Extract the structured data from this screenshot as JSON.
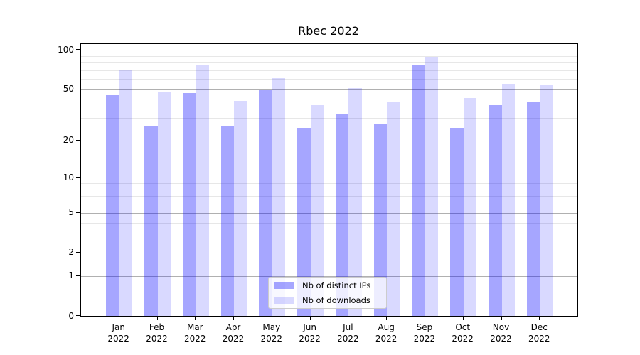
{
  "title": "Rbec 2022",
  "chart_data": {
    "type": "bar",
    "title": "Rbec 2022",
    "categories": [
      "Jan 2022",
      "Feb 2022",
      "Mar 2022",
      "Apr 2022",
      "May 2022",
      "Jun 2022",
      "Jul 2022",
      "Aug 2022",
      "Sep 2022",
      "Oct 2022",
      "Nov 2022",
      "Dec 2022"
    ],
    "x_months": [
      "Jan",
      "Feb",
      "Mar",
      "Apr",
      "May",
      "Jun",
      "Jul",
      "Aug",
      "Sep",
      "Oct",
      "Nov",
      "Dec"
    ],
    "x_year": "2022",
    "series": [
      {
        "name": "Nb of distinct IPs",
        "color": "rgba(0,0,255,0.35)",
        "values": [
          45,
          26,
          47,
          26,
          49,
          25,
          32,
          27,
          76,
          25,
          38,
          40
        ]
      },
      {
        "name": "Nb of downloads",
        "color": "rgba(0,0,255,0.15)",
        "values": [
          71,
          48,
          77,
          41,
          61,
          38,
          51,
          40,
          89,
          43,
          55,
          54
        ]
      }
    ],
    "yscale": "log10(1+x)",
    "y_ticks": [
      0,
      1,
      2,
      5,
      10,
      20,
      50,
      100
    ],
    "y_minor_gridlines": [
      3,
      4,
      6,
      7,
      8,
      9,
      30,
      40,
      60,
      70,
      80,
      90
    ],
    "ylim": [
      0,
      111
    ],
    "grid": "horizontal",
    "legend_position": "lower center"
  },
  "colors": {
    "grid_major": "#b0b0b0",
    "grid_minor": "#e7e7e7",
    "spine": "#000000",
    "background": "#ffffff"
  }
}
